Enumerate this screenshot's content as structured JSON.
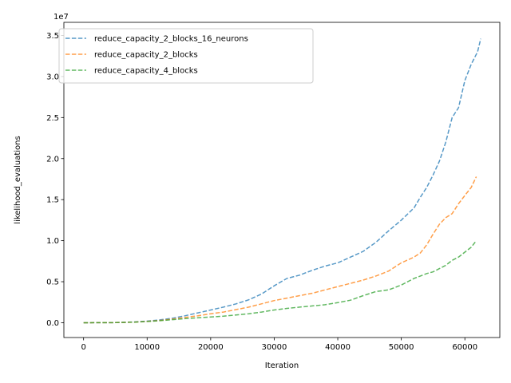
{
  "chart_data": {
    "type": "line",
    "xlabel": "Iteration",
    "ylabel": "likelihood_evaluations",
    "offset_label": "1e7",
    "xlim": [
      -3100,
      65500
    ],
    "ylim": [
      -0.18,
      3.66
    ],
    "x_ticks": [
      0,
      10000,
      20000,
      30000,
      40000,
      50000,
      60000
    ],
    "y_ticks": [
      0.0,
      0.5,
      1.0,
      1.5,
      2.0,
      2.5,
      3.0,
      3.5
    ],
    "y_tick_labels": [
      "0.0",
      "0.5",
      "1.0",
      "1.5",
      "2.0",
      "2.5",
      "3.0",
      "3.5"
    ],
    "grid": false,
    "legend_position": "top-left",
    "line_style": "dashed",
    "series": [
      {
        "name": "reduce_capacity_2_blocks_16_neurons",
        "color": "#1f77b4",
        "x": [
          0,
          5000,
          8000,
          10000,
          12000,
          14000,
          16000,
          18000,
          20000,
          22000,
          24000,
          26000,
          28000,
          30000,
          32000,
          34000,
          36000,
          38000,
          40000,
          42000,
          44000,
          46000,
          48000,
          50000,
          52000,
          53000,
          54000,
          55000,
          56000,
          57000,
          58000,
          59000,
          60000,
          61000,
          62000,
          62500
        ],
        "y": [
          0.0,
          0.002,
          0.01,
          0.02,
          0.035,
          0.055,
          0.085,
          0.12,
          0.155,
          0.19,
          0.23,
          0.28,
          0.35,
          0.45,
          0.54,
          0.58,
          0.64,
          0.69,
          0.73,
          0.8,
          0.87,
          0.98,
          1.12,
          1.25,
          1.4,
          1.53,
          1.65,
          1.8,
          1.97,
          2.2,
          2.5,
          2.62,
          2.95,
          3.15,
          3.3,
          3.46
        ]
      },
      {
        "name": "reduce_capacity_2_blocks",
        "color": "#ff7f0e",
        "x": [
          0,
          5000,
          8000,
          10000,
          12000,
          14000,
          16000,
          18000,
          20000,
          22000,
          24000,
          26000,
          28000,
          30000,
          32000,
          34000,
          36000,
          38000,
          40000,
          42000,
          44000,
          46000,
          48000,
          50000,
          52000,
          53000,
          54000,
          55000,
          56000,
          57000,
          58000,
          59000,
          60000,
          61000,
          61800
        ],
        "y": [
          0.0,
          0.002,
          0.008,
          0.016,
          0.028,
          0.045,
          0.065,
          0.085,
          0.11,
          0.13,
          0.16,
          0.19,
          0.23,
          0.27,
          0.3,
          0.33,
          0.36,
          0.4,
          0.44,
          0.48,
          0.52,
          0.57,
          0.63,
          0.73,
          0.8,
          0.85,
          0.95,
          1.08,
          1.2,
          1.28,
          1.33,
          1.45,
          1.55,
          1.65,
          1.78
        ]
      },
      {
        "name": "reduce_capacity_4_blocks",
        "color": "#2ca02c",
        "x": [
          0,
          5000,
          8000,
          10000,
          12000,
          14000,
          16000,
          18000,
          20000,
          22000,
          24000,
          26000,
          28000,
          30000,
          32000,
          34000,
          36000,
          38000,
          40000,
          42000,
          44000,
          46000,
          48000,
          50000,
          52000,
          53000,
          54000,
          55000,
          56000,
          57000,
          58000,
          59000,
          60000,
          61000,
          61800
        ],
        "y": [
          0.0,
          0.002,
          0.008,
          0.015,
          0.025,
          0.038,
          0.05,
          0.06,
          0.07,
          0.08,
          0.095,
          0.11,
          0.13,
          0.155,
          0.175,
          0.19,
          0.205,
          0.22,
          0.245,
          0.275,
          0.33,
          0.38,
          0.4,
          0.46,
          0.54,
          0.57,
          0.6,
          0.62,
          0.66,
          0.7,
          0.76,
          0.8,
          0.86,
          0.92,
          1.0
        ]
      }
    ]
  }
}
